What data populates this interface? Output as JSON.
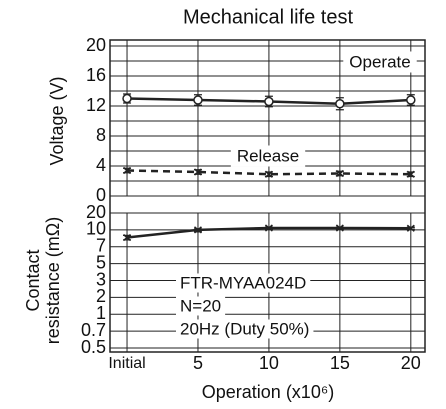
{
  "chart_data": [
    {
      "type": "line",
      "title": "Mechanical life test",
      "ylabel": [
        "Voltage (V)"
      ],
      "x": [
        0,
        5,
        10,
        15,
        20
      ],
      "xlim": [
        -1.2,
        21
      ],
      "xticks": [
        {
          "value": 0,
          "label": "Initial"
        },
        5,
        10,
        15,
        20
      ],
      "ylim": [
        0,
        20
      ],
      "yticks": [
        0,
        4,
        8,
        12,
        16,
        20
      ],
      "minor_yticks": [
        2,
        6,
        10,
        14,
        18
      ],
      "grid": true,
      "series": [
        {
          "name": "Operate",
          "color": "#222222",
          "style": "solid",
          "marker": "circle",
          "values": [
            13.0,
            12.8,
            12.6,
            12.3,
            12.8
          ],
          "errors": [
            0.6,
            0.7,
            0.7,
            0.8,
            0.7
          ]
        },
        {
          "name": "Release",
          "color": "#222222",
          "style": "dashed",
          "marker": "x",
          "values": [
            3.4,
            3.2,
            2.9,
            3.0,
            2.9
          ],
          "errors": [
            0.3,
            0.3,
            0.3,
            0.3,
            0.3
          ]
        }
      ]
    },
    {
      "type": "line",
      "ylabel": [
        "Contact",
        "resistance (mΩ)"
      ],
      "xlabel": "Operation (x10⁶)",
      "x": [
        0,
        5,
        10,
        15,
        20
      ],
      "xlim": [
        -1.2,
        21
      ],
      "xticks": [
        {
          "value": 0,
          "label": "Initial"
        },
        5,
        10,
        15,
        20
      ],
      "ylim": [
        0.5,
        20
      ],
      "yticks": [
        0.5,
        0.7,
        1,
        2,
        3,
        5,
        7,
        10,
        20
      ],
      "grid": true,
      "annotations": [
        "FTR-MYAA024D",
        "N=20",
        "20Hz (Duty 50%)"
      ],
      "series": [
        {
          "color": "#222222",
          "style": "solid",
          "marker": "x",
          "values": [
            8.5,
            10.0,
            10.8,
            10.8,
            10.7
          ],
          "errors": [
            0.4,
            0.4,
            0.4,
            0.4,
            0.4
          ]
        }
      ]
    }
  ]
}
